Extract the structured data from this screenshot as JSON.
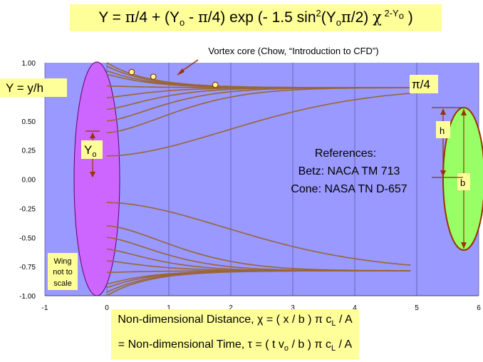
{
  "formula": {
    "prefix": "Y = ",
    "pi1": "π",
    "part1": "/4 + (Y",
    "sub_o1": "o",
    "part2": " - ",
    "pi2": "π",
    "part3": "/4) exp (- 1.5 sin",
    "sup2": "2",
    "part4": "(Y",
    "sub_o2": "o",
    "pi3": "π",
    "part5": "/2) ",
    "chi": "χ",
    "exponent": " 2-Y",
    "exponent_sub": "o",
    "close": " )"
  },
  "x_axis_title": {
    "line1_a": "Non-dimensional Distance, ",
    "line1_b": "χ = ( x / b ) π c",
    "line1_sub": "L",
    "line1_c": " / A",
    "line2_a": "= Non-dimensional Time, ",
    "line2_b": "τ = ( t v",
    "line2_sub": "o",
    "line2_c": " / b ) π c",
    "line2_sub2": "L",
    "line2_d": " / A"
  },
  "annotations": {
    "y_label": "Y = y/h",
    "vortex_core": "Vortex core (Chow, “Introduction to CFD”)",
    "pi_over_4": "π/4",
    "references_title": "References:",
    "reference_1": "Betz: NACA  TM 713",
    "reference_2": "Cone: NASA TN D-657",
    "wing_note_1": "Wing",
    "wing_note_2": "not to",
    "wing_note_3": "scale",
    "yo_label": "Y",
    "yo_sub": "o",
    "h_label": "h",
    "b_label": "b"
  },
  "colors": {
    "plot_bg": "#9999ff",
    "curve": "#996633",
    "wing_fill": "#cc66ff",
    "tip_fill": "#99ff66",
    "tip_stroke": "#993300",
    "label_bg": "#ffff99",
    "marker_fill": "#ffff99"
  },
  "chart_data": {
    "type": "line",
    "title": "Y = π/4 + (Yo - π/4) exp (- 1.5 sin²(Yoπ/2) χ ^(2-Yo))",
    "xlabel": "Non-dimensional Distance, χ = ( x / b ) π cL / A = Non-dimensional Time, τ = ( t vo / b ) π cL / A",
    "ylabel": "Y = y/h",
    "xlim": [
      -1,
      6
    ],
    "ylim": [
      -1.0,
      1.0
    ],
    "x_ticks": [
      "-1",
      "0",
      "1",
      "2",
      "3",
      "4",
      "5",
      "6"
    ],
    "y_ticks": [
      "1.00",
      "0.75",
      "0.50",
      "0.25",
      "0.00",
      "-0.25",
      "-0.50",
      "-0.75",
      "-1.00"
    ],
    "grid": "vertical",
    "x_range_of_curves": [
      0,
      4.9
    ],
    "equation": "Y = pi/4 + (Yo - pi/4) * exp(-1.5 * sin^2(Yo*pi/2) * x^(2-Yo)), mirrored for Yo < 0",
    "initial_values": [
      1.0,
      0.97,
      0.93,
      0.9,
      0.8,
      0.7,
      0.6,
      0.5,
      0.4,
      0.2,
      -0.2,
      -0.4,
      -0.5,
      -0.6,
      -0.7,
      -0.8,
      -0.9,
      -0.93,
      -0.97,
      -1.0
    ],
    "asymptotes": [
      0.785,
      -0.785
    ],
    "vortex_core_points": [
      {
        "x": 0.4,
        "y": 0.92
      },
      {
        "x": 0.75,
        "y": 0.88
      },
      {
        "x": 1.75,
        "y": 0.81
      }
    ]
  }
}
